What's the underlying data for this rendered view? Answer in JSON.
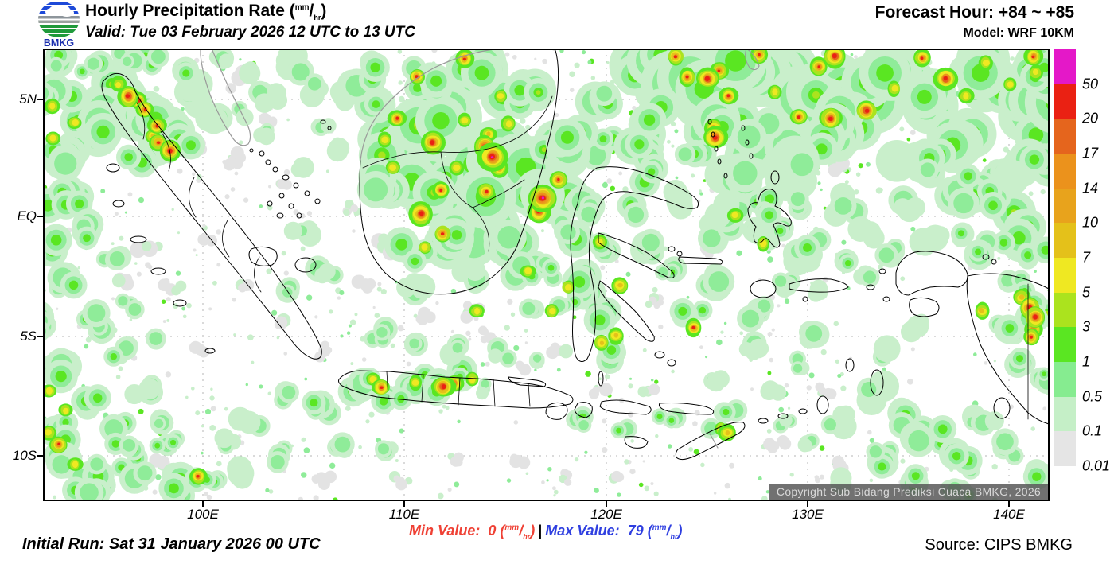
{
  "header": {
    "logo_text": "BMKG",
    "title": "Hourly Precipitation Rate",
    "valid": "Valid: Tue 03 February 2026 12 UTC to 13 UTC",
    "forecast_hour": "Forecast Hour: +84 ~ +85",
    "model": "Model: WRF 10KM"
  },
  "units": {
    "open": "(",
    "num": "mm",
    "slash": "/",
    "den": "hr",
    "close": ")"
  },
  "map": {
    "copyright": "Copyright Sub Bidang Prediksi Cuaca BMKG, 2026",
    "x_ticks": [
      "100E",
      "110E",
      "120E",
      "130E",
      "140E"
    ],
    "y_ticks": [
      "5N",
      "EQ",
      "5S",
      "10S"
    ]
  },
  "legend": {
    "labels": [
      "50",
      "20",
      "17",
      "14",
      "10",
      "7",
      "5",
      "3",
      "1",
      "0.5",
      "0.1",
      "0.01"
    ],
    "colors": [
      "#E418C8",
      "#EA2113",
      "#E5651D",
      "#EB921C",
      "#E8A31C",
      "#E4C11A",
      "#EFE822",
      "#ABE31E",
      "#5AE622",
      "#86EC90",
      "#C5EFC7",
      "#E5E5E5"
    ]
  },
  "footer": {
    "initial_run": "Initial Run: Sat 31 January 2026 00 UTC",
    "min_label": "Min Value:",
    "min_value": "0",
    "separator": "|",
    "max_label": "Max Value:",
    "max_value": "79",
    "source": "Source: CIPS BMKG",
    "min_color": "#EF4135",
    "max_color": "#2F3FE0"
  }
}
